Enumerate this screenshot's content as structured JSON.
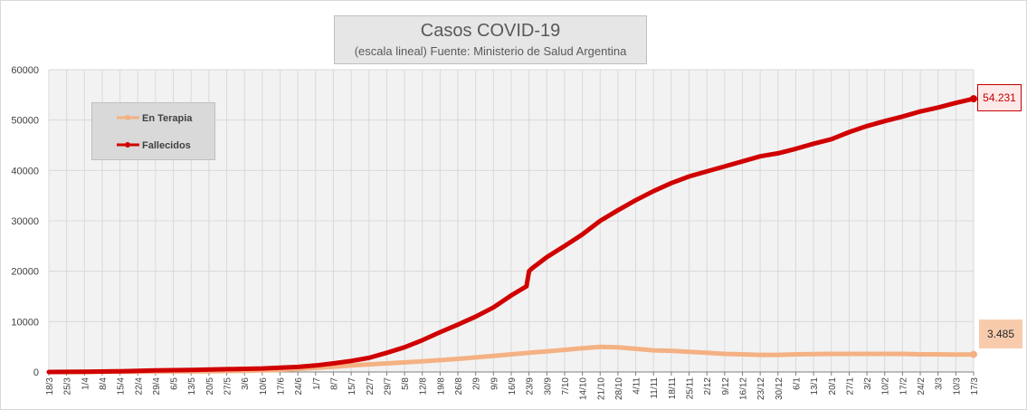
{
  "chart_data": {
    "type": "line",
    "title": "Casos COVID-19",
    "subtitle": "(escala lineal) Fuente: Ministerio de Salud Argentina",
    "ylim": [
      0,
      60000
    ],
    "yticks": [
      "0",
      "10000",
      "20000",
      "30000",
      "40000",
      "50000",
      "60000"
    ],
    "y_tick_values": [
      0,
      10000,
      20000,
      30000,
      40000,
      50000,
      60000
    ],
    "x_tick_labels": [
      "18/3",
      "25/3",
      "1/4",
      "8/4",
      "15/4",
      "22/4",
      "29/4",
      "6/5",
      "13/5",
      "20/5",
      "27/5",
      "3/6",
      "10/6",
      "17/6",
      "24/6",
      "1/7",
      "8/7",
      "15/7",
      "22/7",
      "29/7",
      "5/8",
      "12/8",
      "19/8",
      "26/8",
      "2/9",
      "9/9",
      "16/9",
      "23/9",
      "30/9",
      "7/10",
      "14/10",
      "21/10",
      "28/10",
      "4/11",
      "11/11",
      "18/11",
      "25/11",
      "2/12",
      "9/12",
      "16/12",
      "23/12",
      "30/12",
      "6/1",
      "13/1",
      "20/1",
      "27/1",
      "3/2",
      "10/2",
      "17/2",
      "24/2",
      "3/3",
      "10/3",
      "17/3"
    ],
    "grid": true,
    "legend_position": "top-left",
    "series": [
      {
        "name": "En Terapia",
        "color": "#f4b183",
        "x": [
          0,
          21,
          35,
          49,
          63,
          77,
          91,
          105,
          119,
          133,
          147,
          161,
          168,
          175,
          182,
          189,
          196,
          203,
          210,
          217,
          224,
          231,
          238,
          245,
          252,
          259,
          266,
          273,
          280,
          287,
          294,
          301,
          308,
          315,
          322,
          329,
          336,
          343,
          350,
          357,
          364
        ],
        "values": [
          0,
          30,
          60,
          100,
          150,
          240,
          420,
          800,
          1300,
          1700,
          2100,
          2600,
          2900,
          3200,
          3500,
          3800,
          4100,
          4400,
          4700,
          5000,
          4900,
          4600,
          4300,
          4200,
          4000,
          3800,
          3600,
          3500,
          3400,
          3400,
          3500,
          3550,
          3600,
          3600,
          3600,
          3600,
          3600,
          3500,
          3500,
          3450,
          3485
        ],
        "end_label": "3.485"
      },
      {
        "name": "Fallecidos",
        "color": "#d00000",
        "x": [
          0,
          14,
          28,
          42,
          56,
          70,
          84,
          98,
          105,
          112,
          119,
          126,
          133,
          140,
          147,
          154,
          161,
          168,
          175,
          182,
          188,
          189,
          190,
          196,
          203,
          210,
          217,
          224,
          231,
          238,
          245,
          252,
          259,
          266,
          273,
          280,
          287,
          294,
          301,
          308,
          315,
          322,
          329,
          336,
          343,
          350,
          357,
          364
        ],
        "values": [
          0,
          50,
          150,
          300,
          400,
          550,
          700,
          1000,
          1300,
          1700,
          2200,
          2800,
          3800,
          4900,
          6300,
          7900,
          9400,
          11000,
          12800,
          15200,
          17000,
          20000,
          20500,
          22800,
          25000,
          27300,
          30000,
          32100,
          34100,
          35900,
          37500,
          38800,
          39800,
          40800,
          41800,
          42800,
          43400,
          44300,
          45300,
          46200,
          47600,
          48800,
          49800,
          50700,
          51700,
          52500,
          53400,
          54231
        ],
        "end_label": "54.231"
      }
    ]
  }
}
